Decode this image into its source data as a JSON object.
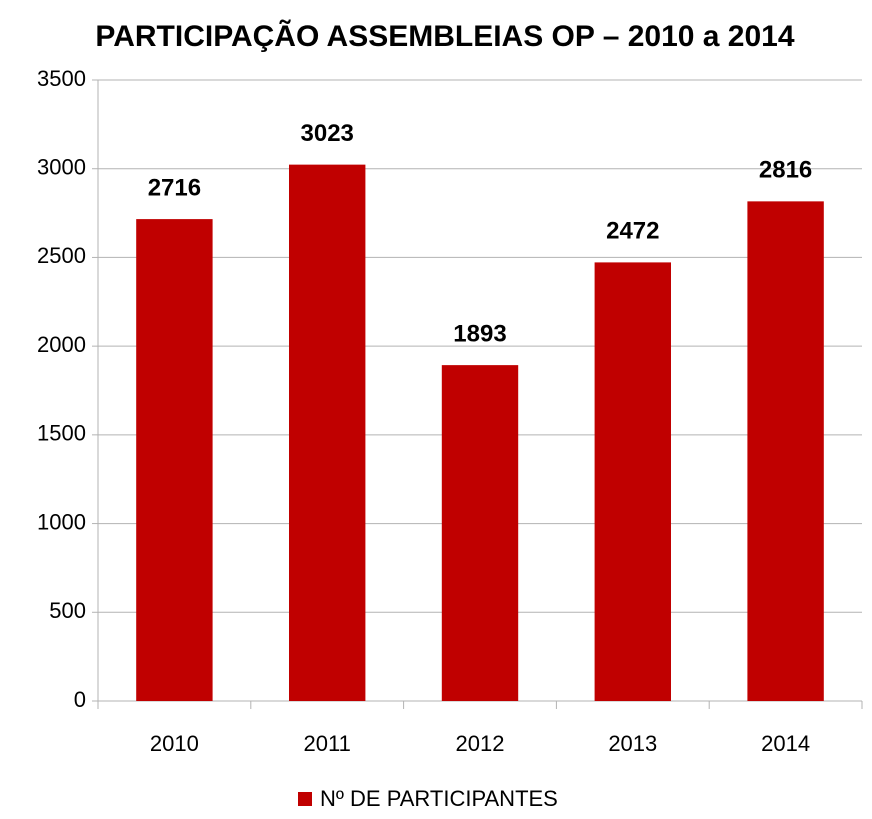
{
  "chart_data": {
    "type": "bar",
    "title": "PARTICIPAÇÃO ASSEMBLEIAS OP – 2010 a 2014",
    "categories": [
      "2010",
      "2011",
      "2012",
      "2013",
      "2014"
    ],
    "series": [
      {
        "name": "Nº DE PARTICIPANTES",
        "color": "#c00000",
        "values": [
          2716,
          3023,
          1893,
          2472,
          2816
        ]
      }
    ],
    "ylim": [
      0,
      3500
    ],
    "yticks": [
      0,
      500,
      1000,
      1500,
      2000,
      2500,
      3000,
      3500
    ],
    "grid": true,
    "legend": "bottom"
  }
}
